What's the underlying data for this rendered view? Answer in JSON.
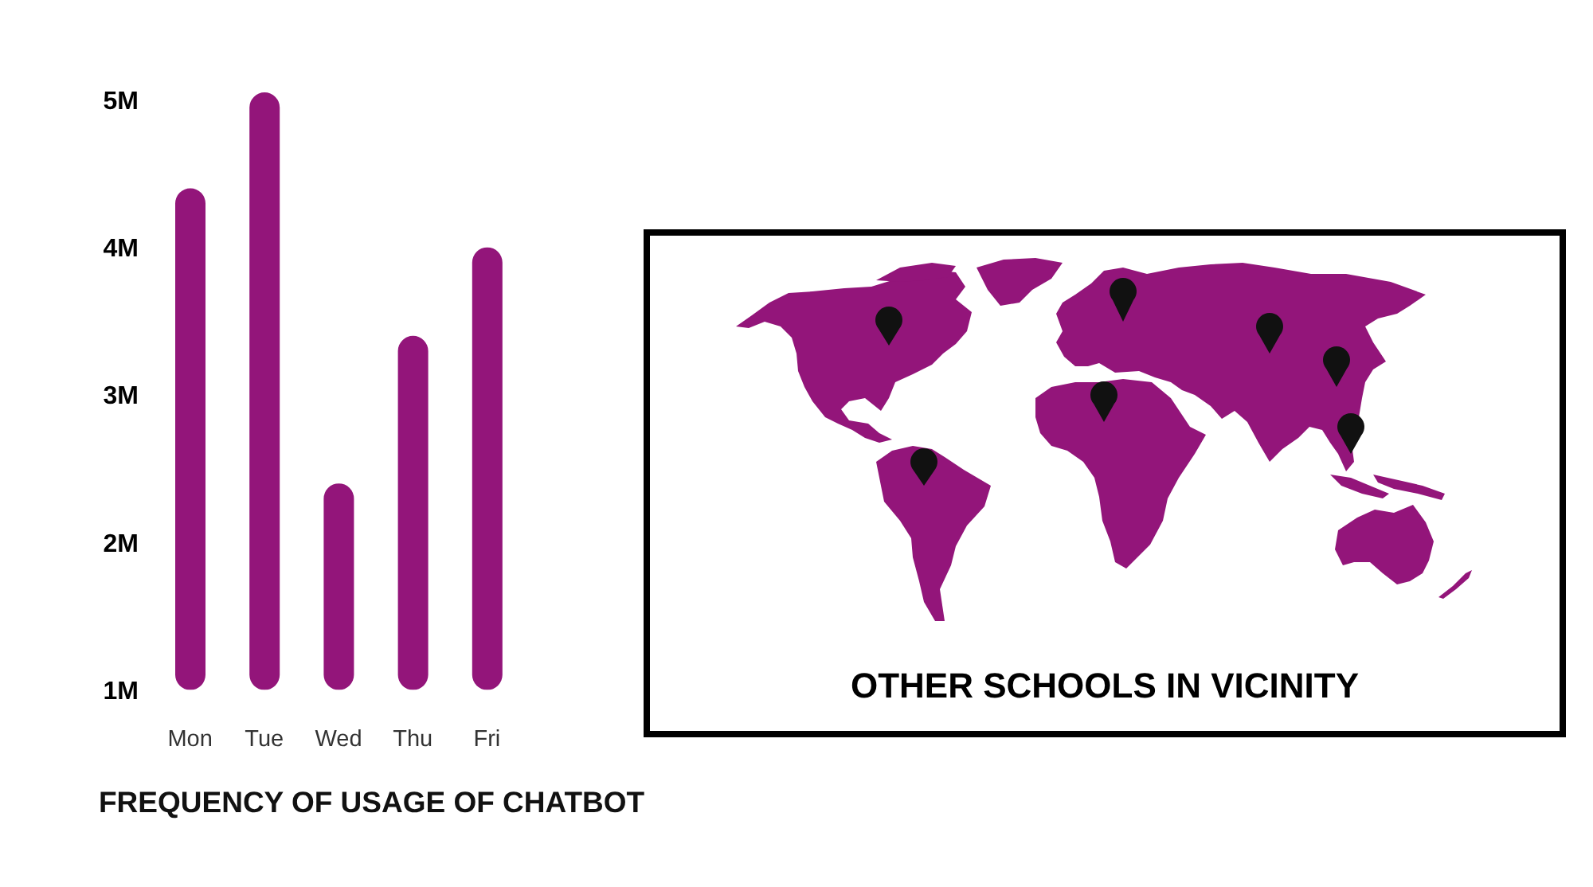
{
  "chart_data": [
    {
      "type": "bar",
      "categories": [
        "Mon",
        "Tue",
        "Wed",
        "Thu",
        "Fri"
      ],
      "values": [
        4.4,
        5.05,
        2.4,
        3.4,
        4.0
      ],
      "color": "#93157a",
      "ylim": [
        1,
        5.1
      ],
      "yticks": [
        {
          "value": 1,
          "label": "1M"
        },
        {
          "value": 2,
          "label": "2M"
        },
        {
          "value": 3,
          "label": "3M"
        },
        {
          "value": 4,
          "label": "4M"
        },
        {
          "value": 5,
          "label": "5M"
        }
      ],
      "xlabel": "FREQUENCY OF USAGE OF CHATBOT"
    },
    {
      "type": "other",
      "title": "OTHER SCHOOLS IN VICINITY"
    }
  ]
}
